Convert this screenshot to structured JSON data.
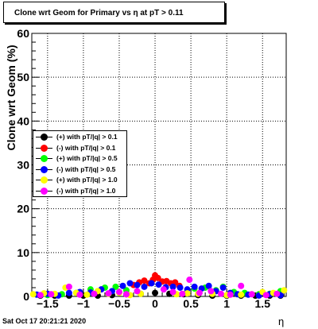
{
  "title": "Clone wrt Geom for Primary vs   η at pT > 0.11",
  "timestamp": "Sat Oct 17 20:21:21 2020",
  "chart_data": {
    "type": "scatter",
    "title": "Clone wrt Geom for Primary vs   η at pT > 0.11",
    "xlabel": "η",
    "ylabel": "Clone wrt Geom (%)",
    "xlim": [
      -1.72,
      1.83
    ],
    "ylim": [
      0,
      60
    ],
    "x_ticks": [
      -1.5,
      -1,
      -0.5,
      0,
      0.5,
      1,
      1.5
    ],
    "x_tick_labels": [
      "−1.5",
      "−1",
      "−0.5",
      "0",
      "0.5",
      "1",
      "1.5"
    ],
    "y_ticks": [
      0,
      10,
      20,
      30,
      40,
      50,
      60
    ],
    "y_tick_labels": [
      "0",
      "10",
      "20",
      "30",
      "40",
      "50",
      "60"
    ],
    "grid": true,
    "legend_position": "left-middle",
    "series": [
      {
        "name": "(+) with pT/|q| > 0.1",
        "color": "#000000",
        "x": [
          -1.6,
          -1.4,
          -1.2,
          -1.0,
          -0.8,
          -0.6,
          -0.4,
          -0.2,
          0.0,
          0.2,
          0.4,
          0.6,
          0.8,
          1.0,
          1.2,
          1.4,
          1.6,
          1.75
        ],
        "y": [
          0,
          0,
          0,
          0,
          0,
          0.3,
          0.5,
          0.6,
          0.8,
          0.6,
          0.5,
          0.3,
          0,
          0,
          0,
          0,
          0,
          0
        ]
      },
      {
        "name": "(-) with pT/|q| > 0.1",
        "color": "#ff0000",
        "x": [
          -0.3,
          -0.22,
          -0.15,
          -0.08,
          -0.03,
          0.0,
          0.04,
          0.1,
          0.16,
          0.22,
          0.28,
          0.34
        ],
        "y": [
          2.6,
          3.2,
          3.6,
          3.0,
          3.8,
          4.8,
          4.2,
          3.4,
          3.5,
          3.0,
          3.2,
          2.4
        ]
      },
      {
        "name": "(+) with pT/|q| > 0.5",
        "color": "#00ff00",
        "x": [
          -1.5,
          -1.3,
          -1.1,
          -0.9,
          -0.7,
          -0.55,
          -0.4,
          0.55,
          0.7,
          0.85,
          0.95,
          1.1,
          1.25,
          1.45,
          1.6,
          1.75
        ],
        "y": [
          0.3,
          0.5,
          0.8,
          1.6,
          2.0,
          2.2,
          1.4,
          1.8,
          2.0,
          1.4,
          2.2,
          1.0,
          0.8,
          0.5,
          0.6,
          1.2
        ]
      },
      {
        "name": "(-) with pT/|q| > 0.5",
        "color": "#0000ff",
        "x": [
          -1.65,
          -1.5,
          -1.35,
          -1.2,
          -1.05,
          -0.9,
          -0.75,
          -0.6,
          -0.45,
          -0.35,
          -0.25,
          -0.15,
          -0.05,
          0.05,
          0.15,
          0.25,
          0.35,
          0.45,
          0.55,
          0.65,
          0.75,
          0.85,
          0.95,
          1.05,
          1.15,
          1.3,
          1.45,
          1.6,
          1.75
        ],
        "y": [
          0.4,
          0.6,
          0.2,
          0.8,
          1.0,
          0.9,
          1.6,
          1.2,
          2.4,
          3.0,
          2.6,
          2.2,
          3.0,
          2.7,
          2.1,
          2.2,
          2.0,
          1.6,
          2.2,
          1.8,
          2.4,
          1.2,
          2.0,
          0.8,
          0.5,
          0.4,
          0.2,
          0.5,
          0.3
        ]
      },
      {
        "name": "(+) with pT/|q| > 1.0",
        "color": "#ffff00",
        "x": [
          -1.7,
          -1.55,
          -1.4,
          -1.25,
          -1.1,
          -0.95,
          -0.8,
          -0.65,
          -0.5,
          -0.35,
          -0.2,
          0.3,
          0.45,
          0.6,
          0.8,
          1.0,
          1.2,
          1.35,
          1.5,
          1.65,
          1.8
        ],
        "y": [
          0.5,
          0.7,
          0.6,
          2.0,
          0.8,
          0.4,
          1.2,
          0.6,
          0.8,
          0.3,
          0.6,
          0.5,
          0.7,
          0.6,
          0.6,
          0.3,
          0.4,
          0.5,
          1.0,
          0.8,
          1.4
        ]
      },
      {
        "name": "(-) with pT/|q| > 1.0",
        "color": "#ff00ff",
        "x": [
          -1.6,
          -1.45,
          -1.2,
          -1.05,
          -0.85,
          -0.65,
          -0.5,
          -0.4,
          -0.25,
          0.12,
          0.25,
          0.38,
          0.48,
          0.62,
          0.78,
          0.92,
          1.05,
          1.2,
          1.35,
          1.55,
          1.7
        ],
        "y": [
          0.3,
          0.5,
          2.2,
          0.4,
          0.6,
          0.7,
          1.0,
          0.5,
          1.2,
          1.6,
          1.0,
          0.6,
          3.8,
          0.8,
          1.2,
          0.6,
          0.4,
          2.4,
          0.5,
          0.3,
          0.6
        ]
      }
    ]
  }
}
